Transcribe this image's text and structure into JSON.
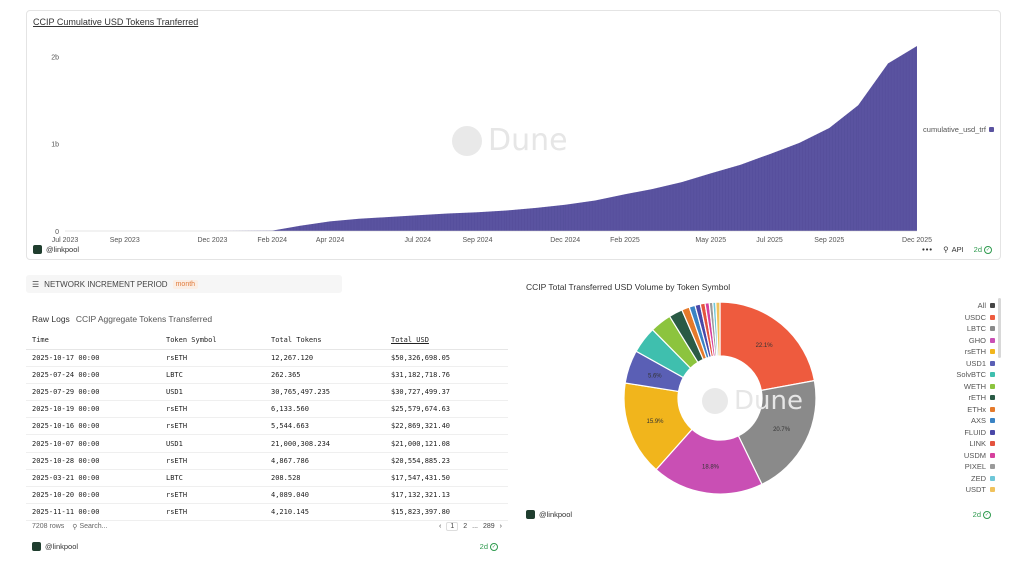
{
  "top_chart": {
    "title": "CCIP Cumulative USD Tokens Tranferred",
    "legend_label": "cumulative_usd_trf",
    "legend_color": "#5a53a0",
    "owner": "@linkpool",
    "api_label": "API",
    "age": "2d",
    "watermark": "Dune"
  },
  "params": {
    "label": "NETWORK INCREMENT PERIOD",
    "value": "month"
  },
  "table": {
    "title": "Raw Logs",
    "subtitle": "CCIP Aggregate Tokens Transferred",
    "columns": [
      "Time",
      "Token Symbol",
      "Total Tokens",
      "Total USD"
    ],
    "rows": [
      [
        "2025-10-17 00:00",
        "rsETH",
        "12,267.120",
        "$50,326,698.05"
      ],
      [
        "2025-07-24 00:00",
        "LBTC",
        "262.365",
        "$31,182,718.76"
      ],
      [
        "2025-07-29 00:00",
        "USD1",
        "30,765,497.235",
        "$30,727,499.37"
      ],
      [
        "2025-10-19 00:00",
        "rsETH",
        "6,133.560",
        "$25,579,674.63"
      ],
      [
        "2025-10-16 00:00",
        "rsETH",
        "5,544.663",
        "$22,869,321.40"
      ],
      [
        "2025-10-07 00:00",
        "USD1",
        "21,000,308.234",
        "$21,000,121.08"
      ],
      [
        "2025-10-28 00:00",
        "rsETH",
        "4,867.786",
        "$20,554,885.23"
      ],
      [
        "2025-03-21 00:00",
        "LBTC",
        "208.528",
        "$17,547,431.50"
      ],
      [
        "2025-10-20 00:00",
        "rsETH",
        "4,089.040",
        "$17,132,321.13"
      ],
      [
        "2025-11-11 00:00",
        "rsETH",
        "4,210.145",
        "$15,823,397.80"
      ]
    ],
    "row_count": "7208 rows",
    "search_placeholder": "Search...",
    "pages": [
      "1",
      "2",
      "...",
      "289"
    ],
    "owner": "@linkpool",
    "age": "2d"
  },
  "pie_panel": {
    "owner": "@linkpool",
    "age": "2d",
    "watermark": "Dune"
  },
  "chart_data": [
    {
      "type": "area",
      "title": "CCIP Cumulative USD Tokens Tranferred",
      "x_ticks": [
        "Jul 2023",
        "Sep 2023",
        "Dec 2023",
        "Feb 2024",
        "Apr 2024",
        "Jul 2024",
        "Sep 2024",
        "Dec 2024",
        "Feb 2025",
        "May 2025",
        "Jul 2025",
        "Sep 2025",
        "Dec 2025"
      ],
      "y_ticks": [
        "0",
        "1b",
        "2b"
      ],
      "ylim": [
        0,
        2200000000
      ],
      "series": [
        {
          "name": "cumulative_usd_trf",
          "color": "#5a53a0",
          "x": [
            "2023-07-01",
            "2023-09-01",
            "2023-12-01",
            "2024-02-01",
            "2024-03-01",
            "2024-04-01",
            "2024-05-01",
            "2024-06-01",
            "2024-07-01",
            "2024-08-01",
            "2024-09-01",
            "2024-10-01",
            "2024-11-01",
            "2024-12-01",
            "2025-01-01",
            "2025-02-01",
            "2025-03-01",
            "2025-04-01",
            "2025-05-01",
            "2025-06-01",
            "2025-07-01",
            "2025-08-01",
            "2025-09-01",
            "2025-10-01",
            "2025-11-01",
            "2025-12-01"
          ],
          "values": [
            0,
            0,
            0,
            5000000,
            60000000,
            110000000,
            140000000,
            160000000,
            180000000,
            200000000,
            215000000,
            235000000,
            265000000,
            300000000,
            350000000,
            420000000,
            480000000,
            560000000,
            660000000,
            760000000,
            880000000,
            1010000000,
            1180000000,
            1440000000,
            1920000000,
            2120000000
          ]
        }
      ],
      "grid": false,
      "legend": "right"
    },
    {
      "type": "pie",
      "title": "CCIP Total Transferred USD Volume by Token Symbol",
      "labels": [
        "USDC",
        "LBTC",
        "GHO",
        "rsETH",
        "USD1",
        "SolvBTC",
        "WETH",
        "rETH",
        "ETHx",
        "AXS",
        "FLUID",
        "LINK",
        "USDM",
        "PIXEL",
        "ZED",
        "USDT"
      ],
      "values": [
        22.1,
        20.7,
        18.8,
        15.9,
        5.6,
        4.5,
        3.6,
        2.3,
        1.3,
        1.0,
        0.9,
        0.8,
        0.7,
        0.6,
        0.5,
        0.7
      ],
      "label_texts": [
        "22.1%",
        "20.7%",
        "18.8%",
        "15.9%",
        "5.6%"
      ],
      "colors": [
        "#ee5b3e",
        "#8a8a8a",
        "#c94fb4",
        "#f1b51c",
        "#5a5fb5",
        "#3fbfae",
        "#8cc43e",
        "#2a5a45",
        "#e57a2b",
        "#3a83c4",
        "#4a47a8",
        "#e4533f",
        "#d6409d",
        "#9a9a9a",
        "#6ec7d8",
        "#f0c25c"
      ],
      "legend_items": [
        "All",
        "USDC",
        "LBTC",
        "GHO",
        "rsETH",
        "USD1",
        "SolvBTC",
        "WETH",
        "rETH",
        "ETHx",
        "AXS",
        "FLUID",
        "LINK",
        "USDM",
        "PIXEL",
        "ZED",
        "USDT"
      ],
      "legend_colors": [
        "#444444",
        "#ee5b3e",
        "#8a8a8a",
        "#c94fb4",
        "#f1b51c",
        "#5a5fb5",
        "#3fbfae",
        "#8cc43e",
        "#2a5a45",
        "#e57a2b",
        "#3a83c4",
        "#4a47a8",
        "#e4533f",
        "#d6409d",
        "#9a9a9a",
        "#6ec7d8",
        "#f0c25c"
      ],
      "legend": "right"
    }
  ]
}
